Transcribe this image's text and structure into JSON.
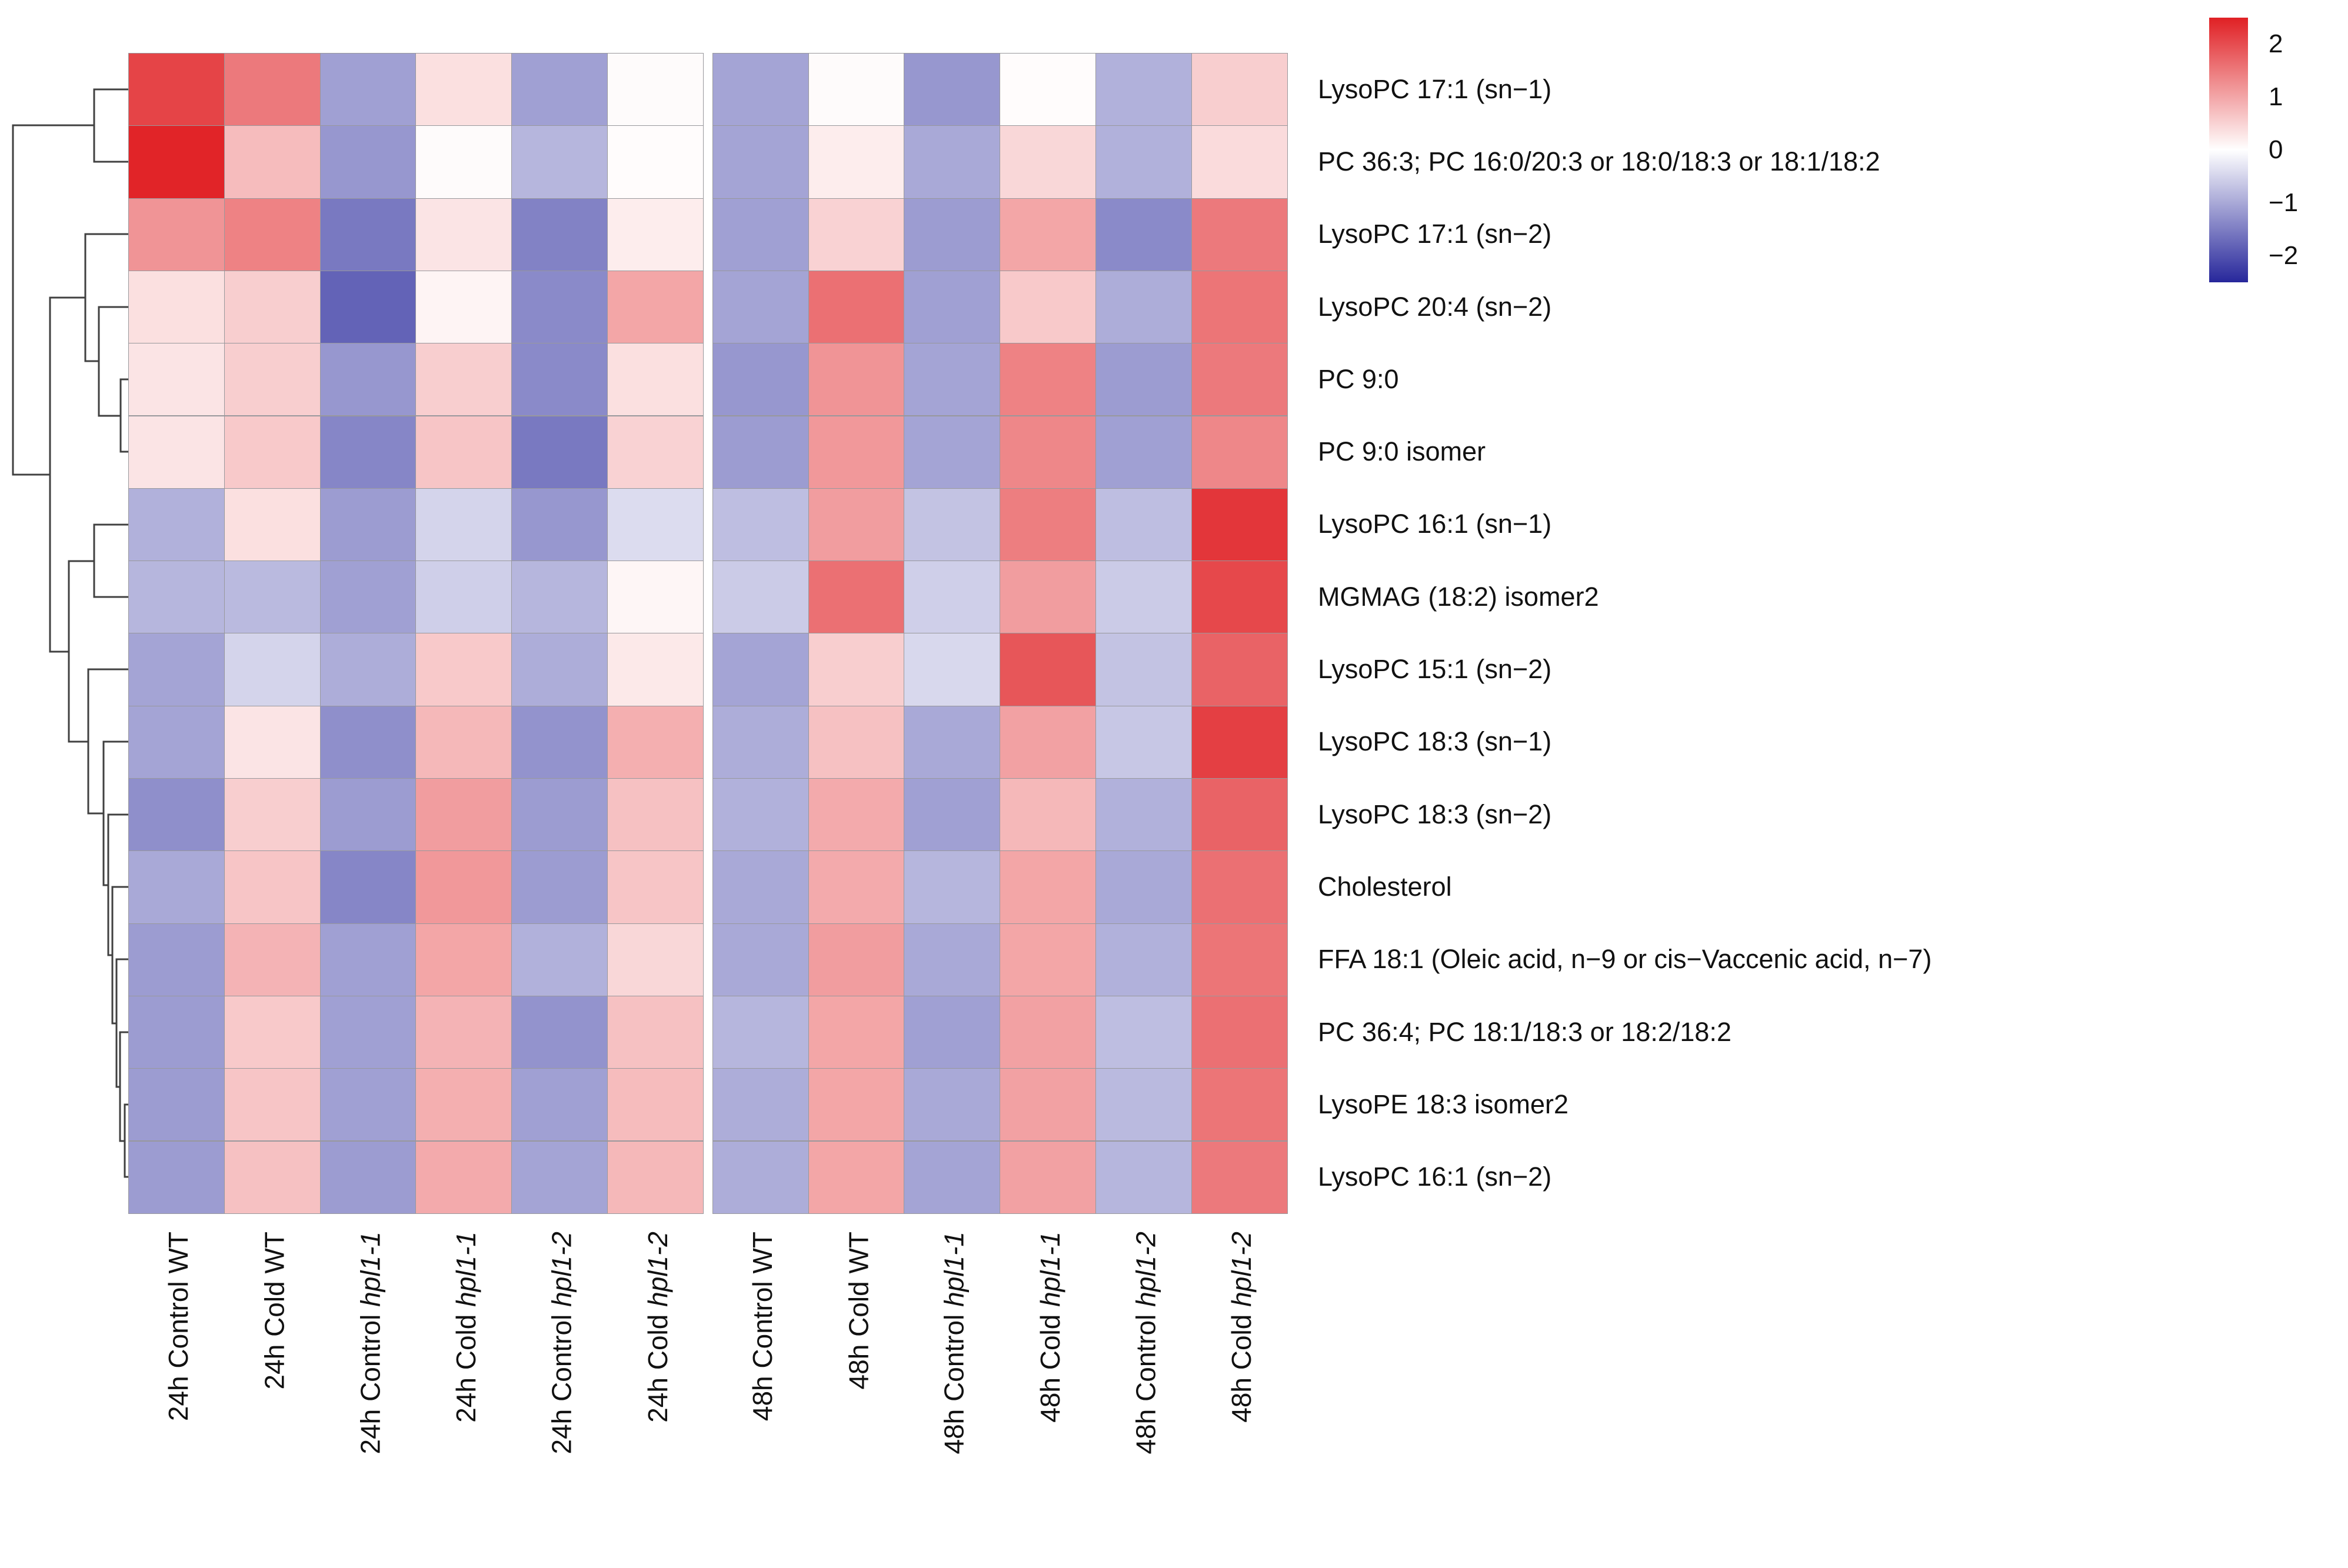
{
  "figure": {
    "kind": "clustered-heatmap",
    "background": "#ffffff",
    "grid_line_color": "#98989c",
    "dendrogram_color": "#404040"
  },
  "chart_data": {
    "type": "heatmap",
    "title": "",
    "xlabel": "",
    "ylabel": "",
    "legend_position": "top-right",
    "row_labels": [
      "LysoPC 17:1 (sn−1)",
      "PC 36:3; PC 16:0/20:3 or 18:0/18:3 or 18:1/18:2",
      "LysoPC 17:1 (sn−2)",
      "LysoPC 20:4 (sn−2)",
      "PC 9:0",
      "PC 9:0 isomer",
      "LysoPC 16:1 (sn−1)",
      "MGMAG (18:2) isomer2",
      "LysoPC 15:1 (sn−2)",
      "LysoPC 18:3 (sn−1)",
      "LysoPC 18:3 (sn−2)",
      "Cholesterol",
      "FFA 18:1 (Oleic acid, n−9 or cis−Vaccenic acid, n−7)",
      "PC 36:4; PC 18:1/18:3 or 18:2/18:2",
      "LysoPE 18:3 isomer2",
      "LysoPC 16:1 (sn−2)"
    ],
    "col_labels": [
      {
        "prefix": "24h Control ",
        "genotype": "WT",
        "genotype_italic": false
      },
      {
        "prefix": "24h Cold ",
        "genotype": "WT",
        "genotype_italic": false
      },
      {
        "prefix": "24h Control ",
        "genotype": "hpl1-1",
        "genotype_italic": true
      },
      {
        "prefix": "24h Cold ",
        "genotype": "hpl1-1",
        "genotype_italic": true
      },
      {
        "prefix": "24h Control ",
        "genotype": "hpl1-2",
        "genotype_italic": true
      },
      {
        "prefix": "24h Cold ",
        "genotype": "hpl1-2",
        "genotype_italic": true
      },
      {
        "prefix": "48h Control ",
        "genotype": "WT",
        "genotype_italic": false
      },
      {
        "prefix": "48h Cold ",
        "genotype": "WT",
        "genotype_italic": false
      },
      {
        "prefix": "48h Control ",
        "genotype": "hpl1-1",
        "genotype_italic": true
      },
      {
        "prefix": "48h Cold ",
        "genotype": "hpl1-1",
        "genotype_italic": true
      },
      {
        "prefix": "48h Control ",
        "genotype": "hpl1-2",
        "genotype_italic": true
      },
      {
        "prefix": "48h Cold ",
        "genotype": "hpl1-2",
        "genotype_italic": true
      }
    ],
    "values": [
      [
        2.1,
        1.5,
        -1.1,
        0.35,
        -1.1,
        0.05,
        -1.05,
        0.05,
        -1.2,
        0.03,
        -0.9,
        0.55
      ],
      [
        2.45,
        0.75,
        -1.2,
        0.05,
        -0.85,
        0.03,
        -1.05,
        0.2,
        -1.0,
        0.45,
        -0.9,
        0.4
      ],
      [
        1.2,
        1.4,
        -1.55,
        0.3,
        -1.45,
        0.2,
        -1.1,
        0.5,
        -1.15,
        1.0,
        -1.35,
        1.5
      ],
      [
        0.35,
        0.55,
        -1.8,
        0.12,
        -1.35,
        1.0,
        -1.05,
        1.6,
        -1.1,
        0.6,
        -0.95,
        1.55
      ],
      [
        0.3,
        0.55,
        -1.2,
        0.55,
        -1.35,
        0.35,
        -1.2,
        1.2,
        -1.05,
        1.4,
        -1.15,
        1.5
      ],
      [
        0.3,
        0.6,
        -1.4,
        0.65,
        -1.55,
        0.5,
        -1.15,
        1.15,
        -1.05,
        1.35,
        -1.1,
        1.35
      ],
      [
        -0.9,
        0.35,
        -1.15,
        -0.5,
        -1.2,
        -0.4,
        -0.75,
        1.1,
        -0.7,
        1.45,
        -0.75,
        2.25
      ],
      [
        -0.85,
        -0.8,
        -1.1,
        -0.55,
        -0.85,
        0.1,
        -0.6,
        1.6,
        -0.55,
        1.1,
        -0.6,
        2.05
      ],
      [
        -1.05,
        -0.5,
        -0.95,
        0.6,
        -0.95,
        0.25,
        -1.05,
        0.55,
        -0.45,
        1.9,
        -0.7,
        1.75
      ],
      [
        -1.05,
        0.3,
        -1.3,
        0.8,
        -1.25,
        0.9,
        -0.95,
        0.7,
        -1.0,
        1.05,
        -0.65,
        2.15
      ],
      [
        -1.3,
        0.55,
        -1.15,
        1.1,
        -1.15,
        0.7,
        -0.9,
        0.95,
        -1.1,
        0.8,
        -0.9,
        1.75
      ],
      [
        -1.0,
        0.65,
        -1.4,
        1.15,
        -1.15,
        0.65,
        -1.0,
        0.95,
        -0.85,
        1.0,
        -1.0,
        1.6
      ],
      [
        -1.15,
        0.85,
        -1.1,
        1.0,
        -0.9,
        0.45,
        -1.0,
        1.1,
        -1.0,
        1.0,
        -0.9,
        1.55
      ],
      [
        -1.15,
        0.6,
        -1.1,
        0.85,
        -1.25,
        0.7,
        -0.85,
        1.0,
        -1.1,
        1.05,
        -0.75,
        1.6
      ],
      [
        -1.15,
        0.65,
        -1.1,
        0.9,
        -1.1,
        0.75,
        -0.95,
        1.0,
        -1.0,
        1.05,
        -0.8,
        1.55
      ],
      [
        -1.15,
        0.7,
        -1.15,
        0.95,
        -1.05,
        0.8,
        -0.95,
        1.0,
        -1.05,
        1.05,
        -0.85,
        1.5
      ]
    ],
    "colorscale": {
      "min": -2.5,
      "max": 2.5,
      "tick_labels": [
        "2",
        "1",
        "0",
        "−1",
        "−2"
      ],
      "tick_values": [
        2,
        1,
        0,
        -1,
        -2
      ],
      "color_high": "#e02024",
      "color_mid": "#ffffff",
      "color_low": "#27279b"
    },
    "column_gap_after_index": 5
  },
  "dendrogram": {
    "segments": [
      [
        218,
        152,
        160,
        152
      ],
      [
        218,
        275,
        160,
        275
      ],
      [
        160,
        152,
        160,
        275
      ],
      [
        160,
        213,
        22,
        213
      ],
      [
        218,
        398,
        145,
        398
      ],
      [
        218,
        522,
        168,
        522
      ],
      [
        218,
        645,
        205,
        645
      ],
      [
        218,
        768,
        205,
        768
      ],
      [
        205,
        645,
        205,
        768
      ],
      [
        205,
        707,
        168,
        707
      ],
      [
        168,
        522,
        168,
        707
      ],
      [
        168,
        614,
        145,
        614
      ],
      [
        145,
        398,
        145,
        614
      ],
      [
        145,
        506,
        85,
        506
      ],
      [
        218,
        892,
        160,
        892
      ],
      [
        218,
        1015,
        160,
        1015
      ],
      [
        160,
        892,
        160,
        1015
      ],
      [
        160,
        954,
        117,
        954
      ],
      [
        218,
        1138,
        150,
        1138
      ],
      [
        218,
        1261,
        176,
        1261
      ],
      [
        218,
        1385,
        184,
        1385
      ],
      [
        218,
        1508,
        191,
        1508
      ],
      [
        218,
        1631,
        198,
        1631
      ],
      [
        218,
        1755,
        204,
        1755
      ],
      [
        218,
        1878,
        212,
        1878
      ],
      [
        218,
        2001,
        212,
        2001
      ],
      [
        212,
        1878,
        212,
        2001
      ],
      [
        212,
        1940,
        204,
        1940
      ],
      [
        204,
        1755,
        204,
        1940
      ],
      [
        204,
        1848,
        198,
        1848
      ],
      [
        198,
        1631,
        198,
        1848
      ],
      [
        198,
        1740,
        191,
        1740
      ],
      [
        191,
        1508,
        191,
        1740
      ],
      [
        191,
        1624,
        184,
        1624
      ],
      [
        184,
        1385,
        184,
        1624
      ],
      [
        184,
        1505,
        176,
        1505
      ],
      [
        176,
        1261,
        176,
        1505
      ],
      [
        176,
        1383,
        150,
        1383
      ],
      [
        150,
        1138,
        150,
        1383
      ],
      [
        150,
        1261,
        117,
        1261
      ],
      [
        117,
        954,
        117,
        1261
      ],
      [
        117,
        1108,
        85,
        1108
      ],
      [
        85,
        506,
        85,
        1108
      ],
      [
        85,
        807,
        22,
        807
      ],
      [
        22,
        213,
        22,
        807
      ]
    ]
  }
}
